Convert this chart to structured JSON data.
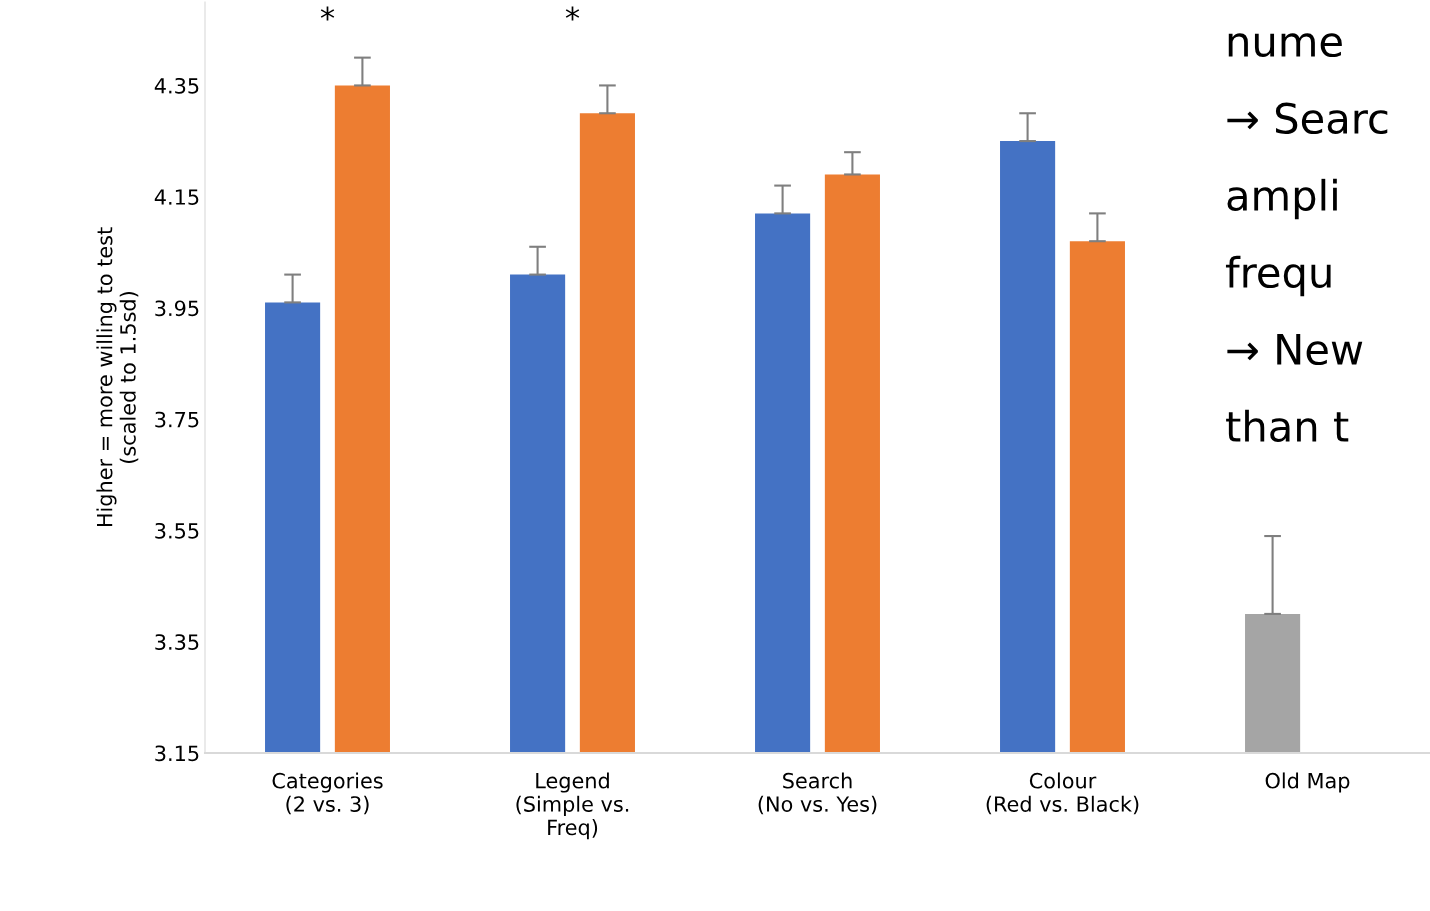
{
  "chart_data": {
    "type": "bar",
    "ylabel": "Higher = more willing to test\n(scaled to 1.5sd)",
    "categories": [
      "Categories\n(2 vs. 3)",
      "Legend\n(Simple vs.\nFreq)",
      "Search\n(No vs. Yes)",
      "Colour\n(Red vs. Black)",
      "Old Map"
    ],
    "series": [
      {
        "colors": [
          "#4472c4",
          "#4472c4",
          "#4472c4",
          "#4472c4",
          "#a5a5a5"
        ],
        "values": [
          3.96,
          4.01,
          4.12,
          4.25,
          3.4
        ],
        "errors": [
          [
            3.96,
            4.01
          ],
          [
            4.01,
            4.06
          ],
          [
            4.12,
            4.17
          ],
          [
            4.25,
            4.3
          ],
          [
            3.4,
            3.54
          ]
        ]
      },
      {
        "color": "#ed7d31",
        "values": [
          4.35,
          4.3,
          4.19,
          4.07,
          null
        ],
        "errors": [
          [
            4.35,
            4.4
          ],
          [
            4.3,
            4.35
          ],
          [
            4.19,
            4.23
          ],
          [
            4.07,
            4.12
          ],
          null
        ]
      }
    ],
    "ylim": [
      3.15,
      4.5
    ],
    "yticks": [
      3.15,
      3.35,
      3.55,
      3.75,
      3.95,
      4.15,
      4.35
    ],
    "grid": false,
    "annotations": [
      "*",
      "*",
      "nume",
      "→ Searc",
      "ampli",
      "frequ",
      "→ New",
      "than t"
    ]
  }
}
